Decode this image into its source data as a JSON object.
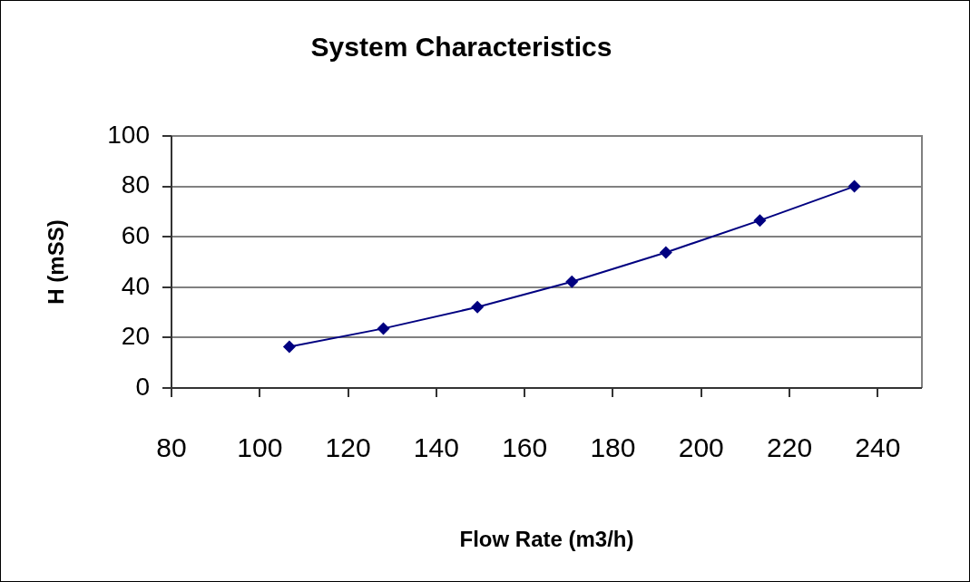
{
  "chart_data": {
    "type": "line",
    "title": "System Characteristics",
    "xlabel": "Flow Rate (m3/h)",
    "ylabel": "H (mSS)",
    "x": [
      106.7,
      128,
      149.3,
      170.7,
      192,
      213.3,
      234.7
    ],
    "series": [
      {
        "color": "#000080",
        "values": [
          16.4,
          23.6,
          32.1,
          42.2,
          53.8,
          66.5,
          80
        ]
      }
    ],
    "xlim": [
      80,
      250
    ],
    "xticks": [
      80,
      100,
      120,
      140,
      160,
      180,
      200,
      220,
      240
    ],
    "ylim": [
      0,
      100
    ],
    "yticks": [
      0,
      20,
      40,
      60,
      80,
      100
    ],
    "grid": "y",
    "marker": "diamond"
  }
}
